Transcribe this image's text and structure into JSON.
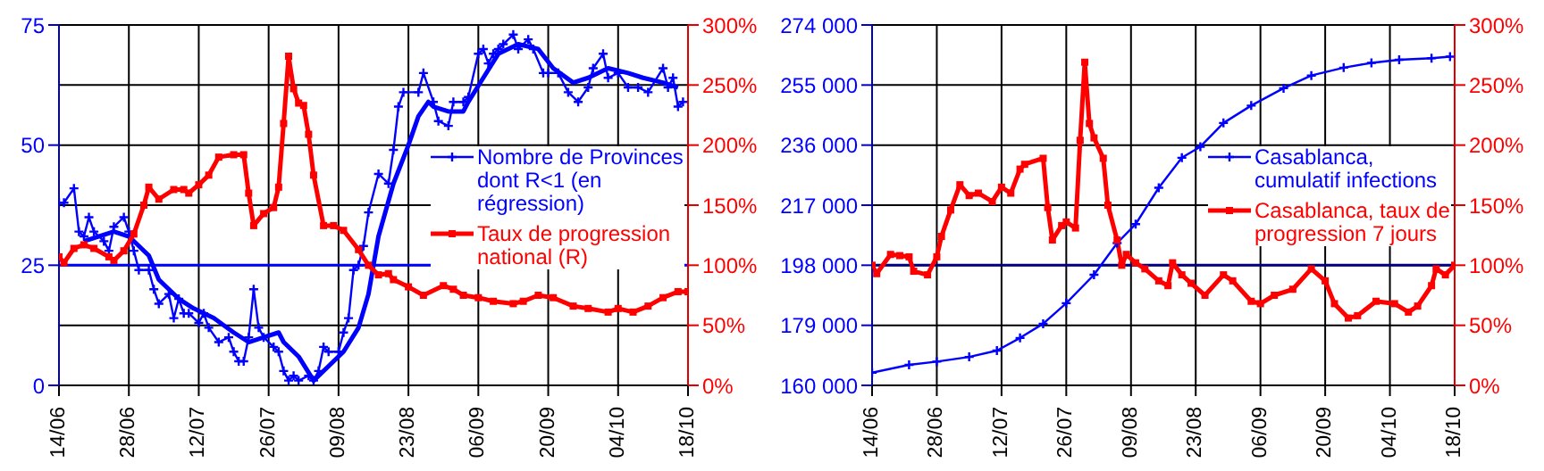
{
  "chart_data": [
    {
      "type": "line",
      "xlim": [
        "--06-14",
        "--10-18"
      ],
      "xticks": [
        {
          "value": "--06-14",
          "label": "14/06"
        },
        {
          "value": "--06-28",
          "label": "28/06"
        },
        {
          "value": "--07-12",
          "label": "12/07"
        },
        {
          "value": "--07-26",
          "label": "26/07"
        },
        {
          "value": "--08-09",
          "label": "09/08"
        },
        {
          "value": "--08-23",
          "label": "23/08"
        },
        {
          "value": "--09-06",
          "label": "06/09"
        },
        {
          "value": "--09-20",
          "label": "20/09"
        },
        {
          "value": "--10-04",
          "label": "04/10"
        },
        {
          "value": "--10-18",
          "label": "18/10"
        }
      ],
      "ylim": [
        0,
        75
      ],
      "yticks": [
        0,
        25,
        50,
        75
      ],
      "y2lim": [
        0,
        300
      ],
      "y2ticks": [
        {
          "value": 0,
          "label": "0%"
        },
        {
          "value": 50,
          "label": "50%"
        },
        {
          "value": 100,
          "label": "100%"
        },
        {
          "value": 150,
          "label": "150%"
        },
        {
          "value": 200,
          "label": "200%"
        },
        {
          "value": 250,
          "label": "250%"
        },
        {
          "value": 300,
          "label": "300%"
        }
      ],
      "grid": true,
      "legend": "right",
      "ref_lines": [
        {
          "axis": "y2",
          "value": 100,
          "color": "#0000ff"
        }
      ],
      "series": [
        {
          "name": "Nombre de Provinces dont R<1 (en régression)",
          "color": "#0000ff",
          "marker": "cross",
          "x": [
            "--06-14",
            "--06-15",
            "--06-17",
            "--06-18",
            "--06-19",
            "--06-20",
            "--06-21",
            "--06-23",
            "--06-24",
            "--06-25",
            "--06-27",
            "--06-28",
            "--06-29",
            "--06-30",
            "--07-02",
            "--07-03",
            "--07-04",
            "--07-06",
            "--07-07",
            "--07-08",
            "--07-09",
            "--07-10",
            "--07-12",
            "--07-13",
            "--07-14",
            "--07-16",
            "--07-18",
            "--07-19",
            "--07-20",
            "--07-21",
            "--07-22",
            "--07-23",
            "--07-24",
            "--07-25",
            "--07-27",
            "--07-28",
            "--07-29",
            "--07-30",
            "--07-31",
            "--08-01",
            "--08-03",
            "--08-04",
            "--08-05",
            "--08-06",
            "--08-07",
            "--08-09",
            "--08-10",
            "--08-11",
            "--08-12",
            "--08-13",
            "--08-14",
            "--08-15",
            "--08-17",
            "--08-19",
            "--08-20",
            "--08-21",
            "--08-22",
            "--08-25",
            "--08-26",
            "--08-28",
            "--08-29",
            "--08-31",
            "--09-01",
            "--09-03",
            "--09-04",
            "--09-06",
            "--09-07",
            "--09-08",
            "--09-09",
            "--09-10",
            "--09-11",
            "--09-13",
            "--09-14",
            "--09-16",
            "--09-17",
            "--09-19",
            "--09-20",
            "--09-22",
            "--09-24",
            "--09-26",
            "--09-28",
            "--09-29",
            "--10-01",
            "--10-02",
            "--10-04",
            "--10-06",
            "--10-08",
            "--10-10",
            "--10-13",
            "--10-14",
            "--10-15",
            "--10-16",
            "--10-17"
          ],
          "values": [
            38,
            38,
            41,
            32,
            31,
            35,
            32,
            30,
            28,
            33,
            35,
            32,
            28,
            24,
            24,
            20,
            17,
            19,
            14,
            18,
            15,
            15,
            13,
            15,
            12,
            9,
            10,
            7,
            5,
            5,
            10,
            20,
            12,
            10,
            8,
            7,
            3,
            1,
            2,
            1,
            2,
            1,
            3,
            8,
            7,
            7,
            11,
            14,
            24,
            25,
            29,
            36,
            44,
            42,
            49,
            58,
            61,
            61,
            65,
            59,
            55,
            54,
            59,
            59,
            60,
            69,
            70,
            67,
            69,
            70,
            71,
            73,
            70,
            72,
            70,
            65,
            65,
            65,
            61,
            59,
            62,
            66,
            69,
            64,
            65,
            62,
            62,
            61,
            66,
            62,
            64,
            58,
            59
          ]
        },
        {
          "color": "#0000ff",
          "marker": "none",
          "x": [
            "--06-19",
            "--06-25",
            "--06-28",
            "--07-02",
            "--07-04",
            "--07-08",
            "--07-11",
            "--07-15",
            "--07-19",
            "--07-22",
            "--07-25",
            "--07-28",
            "--07-29",
            "--08-01",
            "--08-04",
            "--08-07",
            "--08-10",
            "--08-13",
            "--08-15",
            "--08-17",
            "--08-20",
            "--08-23",
            "--08-25",
            "--08-27",
            "--08-28",
            "--08-31",
            "--09-03",
            "--09-04",
            "--09-07",
            "--09-10",
            "--09-14",
            "--09-18",
            "--09-21",
            "--09-25",
            "--09-28",
            "--10-02",
            "--10-06",
            "--10-09",
            "--10-13",
            "--10-16"
          ],
          "values": [
            30,
            32,
            31,
            27,
            22,
            18,
            16,
            14,
            11,
            9,
            10,
            11,
            9,
            6,
            1,
            4,
            7,
            12,
            19,
            31,
            42,
            50,
            56,
            59,
            58,
            57,
            57,
            59,
            64,
            69,
            71,
            70,
            66,
            63,
            64,
            66,
            65,
            64,
            63,
            62
          ]
        },
        {
          "name": "Taux de progression national (R)",
          "color": "#ff0000",
          "marker": "square",
          "axis": "y2",
          "x": [
            "--06-14",
            "--06-15",
            "--06-17",
            "--06-19",
            "--06-21",
            "--06-24",
            "--06-25",
            "--06-27",
            "--06-29",
            "--07-01",
            "--07-02",
            "--07-04",
            "--07-07",
            "--07-09",
            "--07-10",
            "--07-12",
            "--07-14",
            "--07-16",
            "--07-19",
            "--07-21",
            "--07-22",
            "--07-23",
            "--07-25",
            "--07-27",
            "--07-28",
            "--07-29",
            "--07-30",
            "--07-31",
            "--08-01",
            "--08-02",
            "--08-03",
            "--08-04",
            "--08-06",
            "--08-08",
            "--08-10",
            "--08-13",
            "--08-15",
            "--08-17",
            "--08-19",
            "--08-20",
            "--08-23",
            "--08-26",
            "--08-30",
            "--09-01",
            "--09-03",
            "--09-06",
            "--09-09",
            "--09-13",
            "--09-15",
            "--09-18",
            "--09-21",
            "--09-25",
            "--09-28",
            "--10-02",
            "--10-04",
            "--10-07",
            "--10-10",
            "--10-13",
            "--10-16",
            "--10-18"
          ],
          "values": [
            107,
            102,
            114,
            117,
            114,
            107,
            104,
            112,
            126,
            150,
            165,
            155,
            163,
            163,
            160,
            167,
            175,
            190,
            192,
            192,
            160,
            133,
            143,
            148,
            165,
            218,
            274,
            247,
            235,
            233,
            209,
            175,
            133,
            133,
            129,
            113,
            100,
            92,
            93,
            88,
            82,
            75,
            83,
            80,
            75,
            73,
            70,
            68,
            70,
            75,
            73,
            66,
            64,
            61,
            64,
            61,
            66,
            73,
            78,
            78
          ]
        }
      ]
    },
    {
      "type": "line",
      "xlim": [
        "--06-14",
        "--10-18"
      ],
      "xticks": [
        {
          "value": "--06-14",
          "label": "14/06"
        },
        {
          "value": "--06-28",
          "label": "28/06"
        },
        {
          "value": "--07-12",
          "label": "12/07"
        },
        {
          "value": "--07-26",
          "label": "26/07"
        },
        {
          "value": "--08-09",
          "label": "09/08"
        },
        {
          "value": "--08-23",
          "label": "23/08"
        },
        {
          "value": "--09-06",
          "label": "06/09"
        },
        {
          "value": "--09-20",
          "label": "20/09"
        },
        {
          "value": "--10-04",
          "label": "04/10"
        },
        {
          "value": "--10-18",
          "label": "18/10"
        }
      ],
      "ylim": [
        160000,
        274000
      ],
      "yticks": [
        {
          "value": 160000,
          "label": "160 000"
        },
        {
          "value": 179000,
          "label": "179 000"
        },
        {
          "value": 198000,
          "label": "198 000"
        },
        {
          "value": 217000,
          "label": "217 000"
        },
        {
          "value": 236000,
          "label": "236 000"
        },
        {
          "value": 255000,
          "label": "255 000"
        },
        {
          "value": 274000,
          "label": "274 000"
        }
      ],
      "y2lim": [
        0,
        300
      ],
      "y2ticks": [
        {
          "value": 0,
          "label": "0%"
        },
        {
          "value": 50,
          "label": "50%"
        },
        {
          "value": 100,
          "label": "100%"
        },
        {
          "value": 150,
          "label": "150%"
        },
        {
          "value": 200,
          "label": "200%"
        },
        {
          "value": 250,
          "label": "250%"
        },
        {
          "value": 300,
          "label": "300%"
        }
      ],
      "grid": true,
      "legend": "right",
      "ref_lines": [
        {
          "axis": "y2",
          "value": 100,
          "color": "#000080"
        }
      ],
      "series": [
        {
          "name": "Casablanca, cumulatif infections",
          "color": "#0000ff",
          "marker": "cross",
          "x": [
            "--06-14",
            "--06-22",
            "--06-28",
            "--07-05",
            "--07-11",
            "--07-16",
            "--07-21",
            "--07-26",
            "--08-01",
            "--08-06",
            "--08-10",
            "--08-15",
            "--08-20",
            "--08-24",
            "--08-29",
            "--09-04",
            "--09-11",
            "--09-17",
            "--09-24",
            "--09-30",
            "--10-06",
            "--10-13",
            "--10-17"
          ],
          "values": [
            164000,
            166500,
            167500,
            169000,
            171000,
            175000,
            179500,
            186000,
            195000,
            205000,
            211000,
            222500,
            232000,
            235500,
            243000,
            248500,
            254000,
            258000,
            260500,
            262000,
            263000,
            263500,
            264000
          ]
        },
        {
          "name": "Casablanca, taux de progression 7 jours",
          "color": "#ff0000",
          "marker": "square",
          "axis": "y2",
          "x": [
            "--06-14",
            "--06-15",
            "--06-18",
            "--06-20",
            "--06-22",
            "--06-23",
            "--06-26",
            "--06-28",
            "--06-29",
            "--07-01",
            "--07-03",
            "--07-05",
            "--07-07",
            "--07-10",
            "--07-12",
            "--07-14",
            "--07-16",
            "--07-17",
            "--07-21",
            "--07-22",
            "--07-23",
            "--07-25",
            "--07-26",
            "--07-28",
            "--07-29",
            "--07-30",
            "--07-31",
            "--08-01",
            "--08-03",
            "--08-04",
            "--08-06",
            "--08-07",
            "--08-08",
            "--08-10",
            "--08-12",
            "--08-15",
            "--08-17",
            "--08-18",
            "--08-20",
            "--08-22",
            "--08-25",
            "--08-29",
            "--08-31",
            "--09-04",
            "--09-06",
            "--09-09",
            "--09-13",
            "--09-17",
            "--09-20",
            "--09-22",
            "--09-25",
            "--09-27",
            "--10-01",
            "--10-05",
            "--10-08",
            "--10-10",
            "--10-13",
            "--10-14",
            "--10-16",
            "--10-18"
          ],
          "values": [
            100,
            93,
            109,
            108,
            107,
            95,
            92,
            107,
            124,
            146,
            167,
            158,
            160,
            153,
            165,
            160,
            180,
            184,
            189,
            148,
            121,
            133,
            136,
            131,
            204,
            269,
            218,
            206,
            189,
            150,
            121,
            100,
            109,
            102,
            97,
            87,
            83,
            102,
            92,
            85,
            75,
            92,
            87,
            70,
            68,
            75,
            80,
            97,
            87,
            68,
            56,
            58,
            70,
            68,
            61,
            66,
            83,
            97,
            92,
            100
          ]
        }
      ]
    }
  ]
}
